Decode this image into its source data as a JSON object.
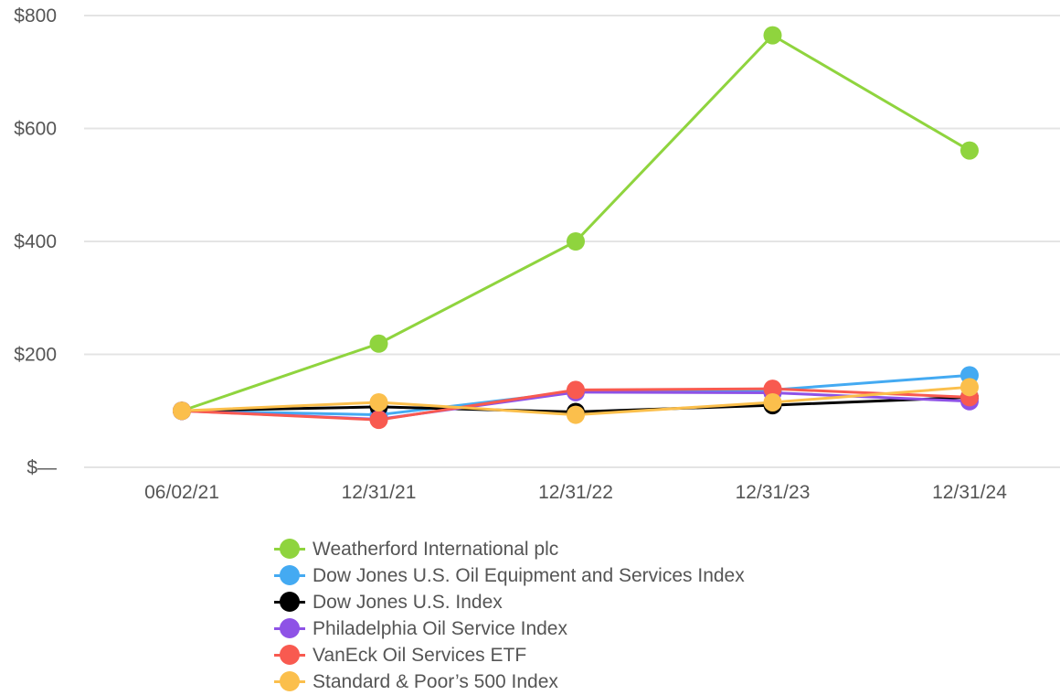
{
  "chart_data": {
    "type": "line",
    "categories": [
      "06/02/21",
      "12/31/21",
      "12/31/22",
      "12/31/23",
      "12/31/24"
    ],
    "ylim": [
      0,
      800
    ],
    "yticks": [
      0,
      200,
      400,
      600,
      800
    ],
    "ytick_labels": [
      "$—",
      "$200",
      "$400",
      "$600",
      "$800"
    ],
    "grid": true,
    "legend_position": "bottom",
    "series": [
      {
        "name": "Weatherford International plc",
        "color": "#8fd43e",
        "values": [
          100,
          219,
          400,
          765,
          561
        ]
      },
      {
        "name": "Dow Jones U.S. Oil Equipment and Services Index",
        "color": "#44aaf2",
        "values": [
          100,
          93,
          134,
          137,
          163
        ]
      },
      {
        "name": "Dow Jones U.S. Index",
        "color": "#000000",
        "values": [
          100,
          107,
          98,
          110,
          124
        ]
      },
      {
        "name": "Philadelphia Oil Service Index",
        "color": "#8e52e6",
        "values": [
          100,
          85,
          133,
          132,
          117
        ]
      },
      {
        "name": "VanEck Oil Services ETF",
        "color": "#f85a50",
        "values": [
          100,
          84,
          137,
          139,
          124
        ]
      },
      {
        "name": "Standard & Poor’s 500 Index",
        "color": "#fbbf4c",
        "values": [
          100,
          115,
          93,
          115,
          142
        ]
      }
    ]
  }
}
